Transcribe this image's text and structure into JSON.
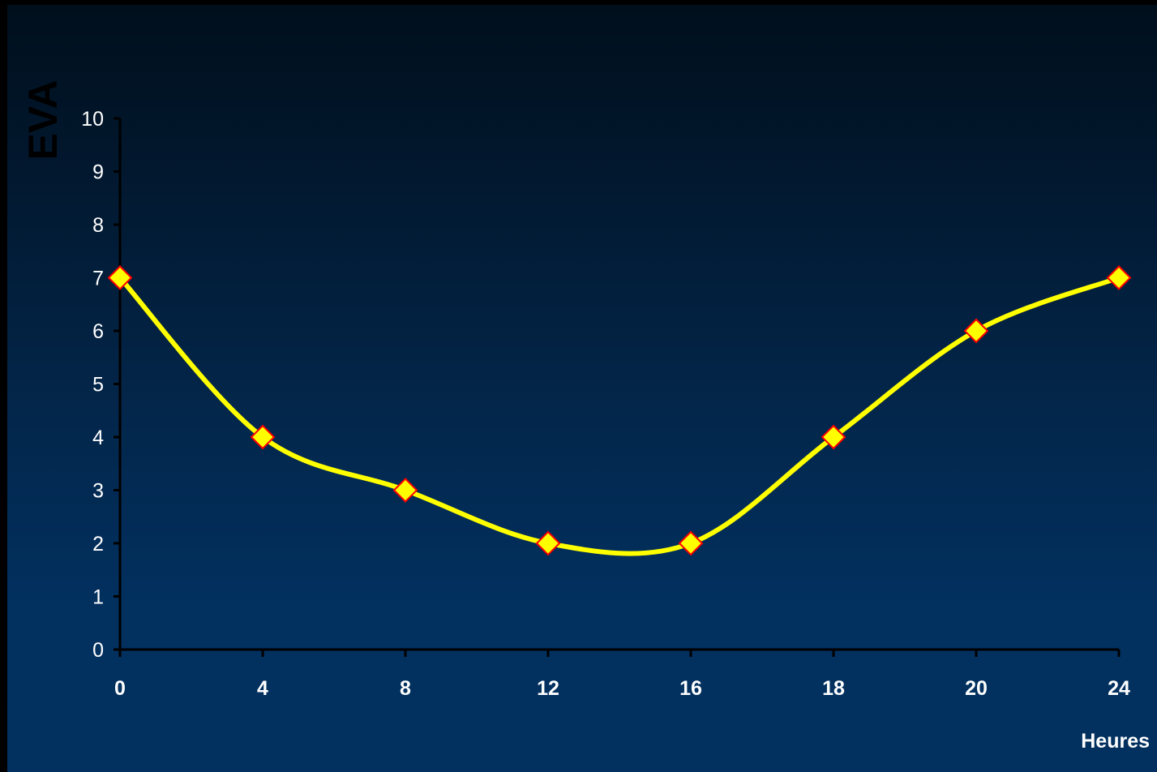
{
  "chart_data": {
    "type": "line",
    "x_categories": [
      "0",
      "4",
      "8",
      "12",
      "16",
      "18",
      "20",
      "24"
    ],
    "series": [
      {
        "values": [
          7,
          4,
          3,
          2,
          2,
          4,
          6,
          7
        ]
      }
    ],
    "ylabel": "EVA",
    "xlabel": "Heures",
    "ylim": [
      0,
      10
    ],
    "yticks": [
      "0",
      "1",
      "2",
      "3",
      "4",
      "5",
      "6",
      "7",
      "8",
      "9",
      "10"
    ],
    "grid": false,
    "legend": "none",
    "smooth": true,
    "colors": {
      "line": "#ffff00",
      "marker_fill": "#ffff00",
      "marker_edge": "#ff0000",
      "axis": "#000000",
      "tick_text": "#ffffff",
      "background_top": "#000f1c",
      "background_bottom": "#02315f"
    }
  }
}
